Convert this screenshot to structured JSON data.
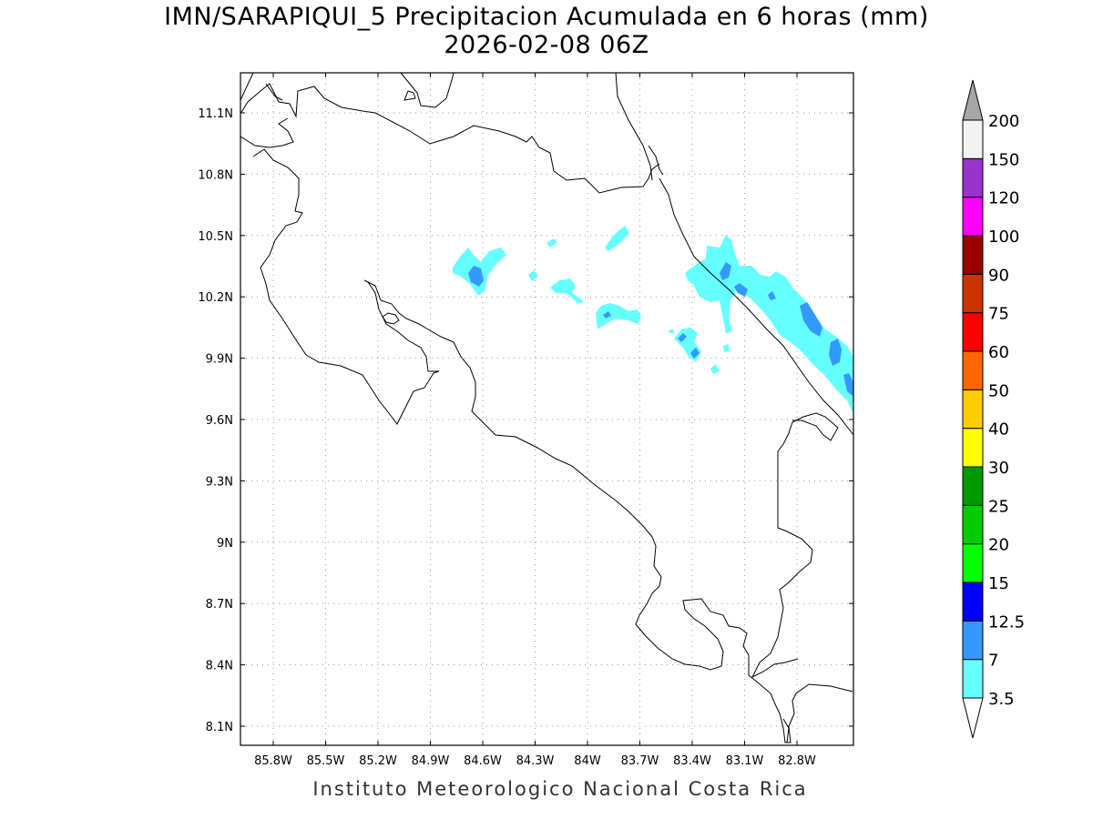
{
  "title_line1": "IMN/SARAPIQUI_5 Precipitacion Acumulada en 6 horas (mm)",
  "title_line2": "2026-02-08 06Z",
  "footer": "Instituto Meteorologico Nacional Costa Rica",
  "map": {
    "lon_range": [
      -86.0,
      -83.05
    ],
    "lat_range": [
      8.0,
      11.3
    ],
    "lon_ticks": [
      {
        "value": -85.8,
        "label": "85.8W"
      },
      {
        "value": -85.5,
        "label": "85.5W"
      },
      {
        "value": -85.2,
        "label": "85.2W"
      },
      {
        "value": -84.9,
        "label": "84.9W"
      },
      {
        "value": -84.6,
        "label": "84.6W"
      },
      {
        "value": -84.3,
        "label": "84.3W"
      },
      {
        "value": -84.0,
        "label": "84W"
      },
      {
        "value": -83.7,
        "label": "83.7W"
      },
      {
        "value": -83.4,
        "label": "83.4W"
      },
      {
        "value": -83.1,
        "label": "83.1W"
      },
      {
        "value": -82.8,
        "label": "82.8W"
      }
    ],
    "lat_ticks": [
      {
        "value": 11.1,
        "label": "11.1N"
      },
      {
        "value": 10.8,
        "label": "10.8N"
      },
      {
        "value": 10.5,
        "label": "10.5N"
      },
      {
        "value": 10.2,
        "label": "10.2N"
      },
      {
        "value": 9.9,
        "label": "9.9N"
      },
      {
        "value": 9.6,
        "label": "9.6N"
      },
      {
        "value": 9.3,
        "label": "9.3N"
      },
      {
        "value": 9.0,
        "label": "9N"
      },
      {
        "value": 8.7,
        "label": "8.7N"
      },
      {
        "value": 8.4,
        "label": "8.4N"
      },
      {
        "value": 8.1,
        "label": "8.1N"
      }
    ]
  },
  "colorbar": {
    "levels": [
      {
        "label": "3.5",
        "color": "#66ffff"
      },
      {
        "label": "7",
        "color": "#3399ff"
      },
      {
        "label": "12.5",
        "color": "#0000ff"
      },
      {
        "label": "15",
        "color": "#00ff00"
      },
      {
        "label": "20",
        "color": "#00cc00"
      },
      {
        "label": "25",
        "color": "#009900"
      },
      {
        "label": "30",
        "color": "#ffff00"
      },
      {
        "label": "40",
        "color": "#ffcc00"
      },
      {
        "label": "50",
        "color": "#ff6600"
      },
      {
        "label": "60",
        "color": "#ff0000"
      },
      {
        "label": "75",
        "color": "#cc3300"
      },
      {
        "label": "90",
        "color": "#990000"
      },
      {
        "label": "100",
        "color": "#ff00ff"
      },
      {
        "label": "120",
        "color": "#9933cc"
      },
      {
        "label": "150",
        "color": "#f2f2f2"
      },
      {
        "label": "200",
        "color": "#a6a6a6"
      }
    ]
  },
  "precip_areas": [
    {
      "level": "3.5",
      "color": "#66ffff"
    },
    {
      "level": "7",
      "color": "#3399ff"
    }
  ]
}
